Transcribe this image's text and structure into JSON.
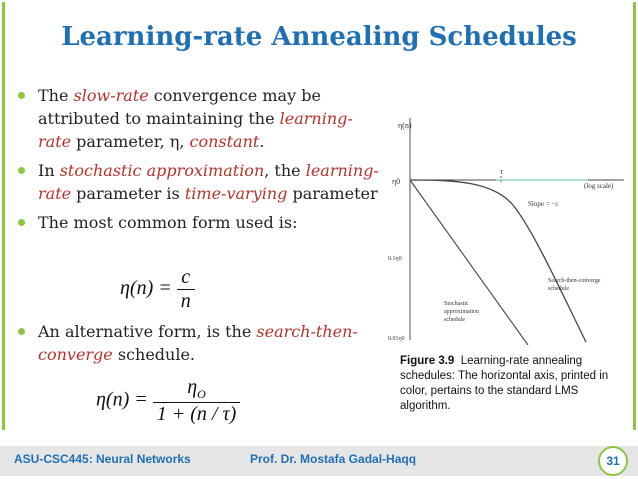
{
  "title": "Learning-rate Annealing Schedules",
  "bullets": {
    "b1": {
      "p1": "The ",
      "e1": "slow-rate",
      "p2": " convergence may be attributed to maintaining the ",
      "e2": "learning-rate",
      "p3": " parameter, η, ",
      "e3": "constant",
      "p4": "."
    },
    "b2": {
      "p1": "In ",
      "e1": "stochastic approximation",
      "p2": ", the ",
      "e2": "learning-rate",
      "p3": " parameter is ",
      "e3": "time-varying",
      "p4": " parameter"
    },
    "b3": {
      "p1": "The most common form used is:"
    },
    "b4": {
      "p1": "An alternative form, is the ",
      "e1": "search-then-converge",
      "p2": " schedule."
    }
  },
  "equation1": {
    "lhs": "η(n) = ",
    "num": "c",
    "den": "n"
  },
  "equation2": {
    "lhs": "η(n) = ",
    "num": "η",
    "num_sub": "O",
    "den": "1 + (n / τ)"
  },
  "figure": {
    "y_axis_label": "η(n)",
    "x_axis_label": "(log scale)",
    "tau": "τ",
    "eta0": "η0",
    "tick_01": "0.1η0",
    "tick_001": "0.01η0",
    "slope": "Slope = −c",
    "stochastic_label": [
      "Stochastic",
      "approximation",
      "schedule"
    ],
    "stc_label": [
      "Search-then-converge",
      "schedule"
    ]
  },
  "caption": {
    "bold": "Figure 3.9",
    "text": "Learning-rate annealing schedules: The horizontal axis, printed in color, pertains to the standard LMS algorithm."
  },
  "footer": {
    "course": "ASU-CSC445: Neural Networks",
    "author": "Prof. Dr. Mostafa Gadal-Haqq",
    "page": "31"
  },
  "colors": {
    "title": "#1f6fb5",
    "accent": "#8dc63f",
    "emphasis": "#b4332a"
  }
}
